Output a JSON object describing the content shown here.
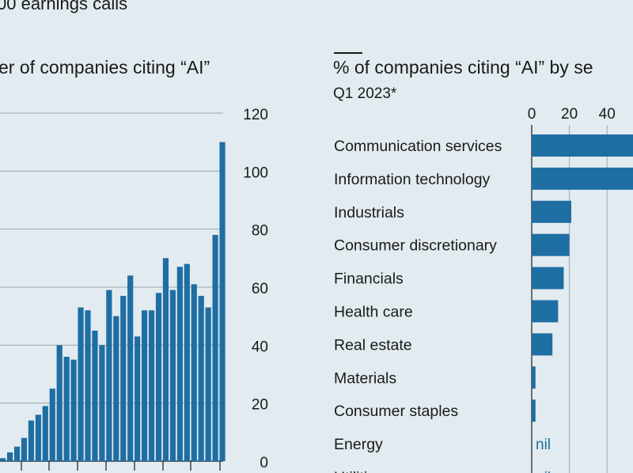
{
  "header": {
    "subtitle_fragment": "00 earnings calls"
  },
  "colors": {
    "background": "#e2ebf0",
    "bar": "#1f6ea3",
    "grid": "#9aa7ae",
    "nil_text": "#1f6ea3"
  },
  "chart_data": [
    {
      "type": "bar",
      "title": "er of companies citing “AI”",
      "ylim": [
        0,
        120
      ],
      "yticks": [
        "0",
        "20",
        "40",
        "60",
        "80",
        "100",
        "120"
      ],
      "y_axis_side": "right",
      "grid": true,
      "values": [
        1,
        3,
        5,
        8,
        14,
        16,
        19,
        25,
        40,
        36,
        35,
        53,
        52,
        45,
        40,
        59,
        50,
        57,
        64,
        43,
        52,
        52,
        58,
        70,
        59,
        67,
        68,
        61,
        57,
        53,
        78,
        110
      ]
    },
    {
      "type": "bar",
      "orientation": "horizontal",
      "title": "% of companies citing “AI” by se",
      "subtitle": "Q1 2023*",
      "xticks": [
        "0",
        "20",
        "40"
      ],
      "grid": true,
      "categories": [
        "Communication services",
        "Information technology",
        "Industrials",
        "Consumer discretionary",
        "Financials",
        "Health care",
        "Real estate",
        "Materials",
        "Consumer staples",
        "Energy",
        "Utilities"
      ],
      "values": [
        62,
        58,
        21,
        20,
        17,
        14,
        11,
        2,
        2,
        0,
        0
      ],
      "value_labels": [
        "",
        "",
        "",
        "",
        "",
        "",
        "",
        "",
        "",
        "nil",
        "nil"
      ]
    }
  ]
}
